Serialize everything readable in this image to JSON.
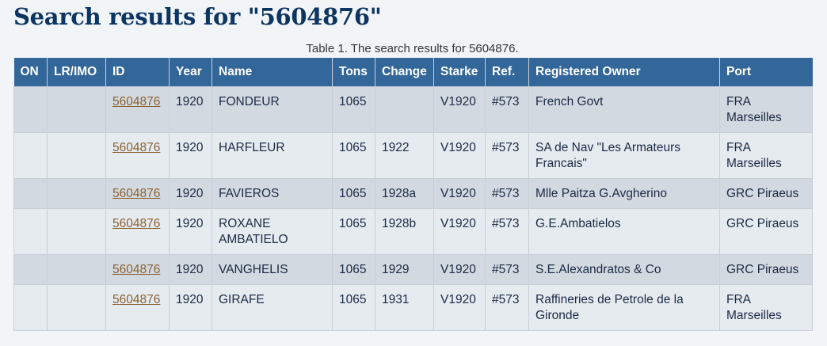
{
  "title": "Search results for \"5604876\"",
  "caption": "Table 1. The search results for 5604876.",
  "columns": [
    "ON",
    "LR/IMO",
    "ID",
    "Year",
    "Name",
    "Tons",
    "Change",
    "Starke",
    "Ref.",
    "Registered Owner",
    "Port"
  ],
  "rows": [
    {
      "on": "",
      "lr": "",
      "id": "5604876",
      "year": "1920",
      "name": "FONDEUR",
      "tons": "1065",
      "change": "",
      "starke": "V1920",
      "ref": "#573",
      "owner": "French Govt",
      "port": "FRA Marseilles"
    },
    {
      "on": "",
      "lr": "",
      "id": "5604876",
      "year": "1920",
      "name": "HARFLEUR",
      "tons": "1065",
      "change": "1922",
      "starke": "V1920",
      "ref": "#573",
      "owner": "SA de Nav \"Les Armateurs Francais\"",
      "port": "FRA Marseilles"
    },
    {
      "on": "",
      "lr": "",
      "id": "5604876",
      "year": "1920",
      "name": "FAVIEROS",
      "tons": "1065",
      "change": "1928a",
      "starke": "V1920",
      "ref": "#573",
      "owner": "Mlle Paitza G.Avgherino",
      "port": "GRC Piraeus"
    },
    {
      "on": "",
      "lr": "",
      "id": "5604876",
      "year": "1920",
      "name": "ROXANE AMBATIELO",
      "tons": "1065",
      "change": "1928b",
      "starke": "V1920",
      "ref": "#573",
      "owner": "G.E.Ambatielos",
      "port": "GRC Piraeus"
    },
    {
      "on": "",
      "lr": "",
      "id": "5604876",
      "year": "1920",
      "name": "VANGHELIS",
      "tons": "1065",
      "change": "1929",
      "starke": "V1920",
      "ref": "#573",
      "owner": "S.E.Alexandratos & Co",
      "port": "GRC Piraeus"
    },
    {
      "on": "",
      "lr": "",
      "id": "5604876",
      "year": "1920",
      "name": "GIRAFE",
      "tons": "1065",
      "change": "1931",
      "starke": "V1920",
      "ref": "#573",
      "owner": "Raffineries de Petrole de la Gironde",
      "port": "FRA Marseilles"
    }
  ]
}
